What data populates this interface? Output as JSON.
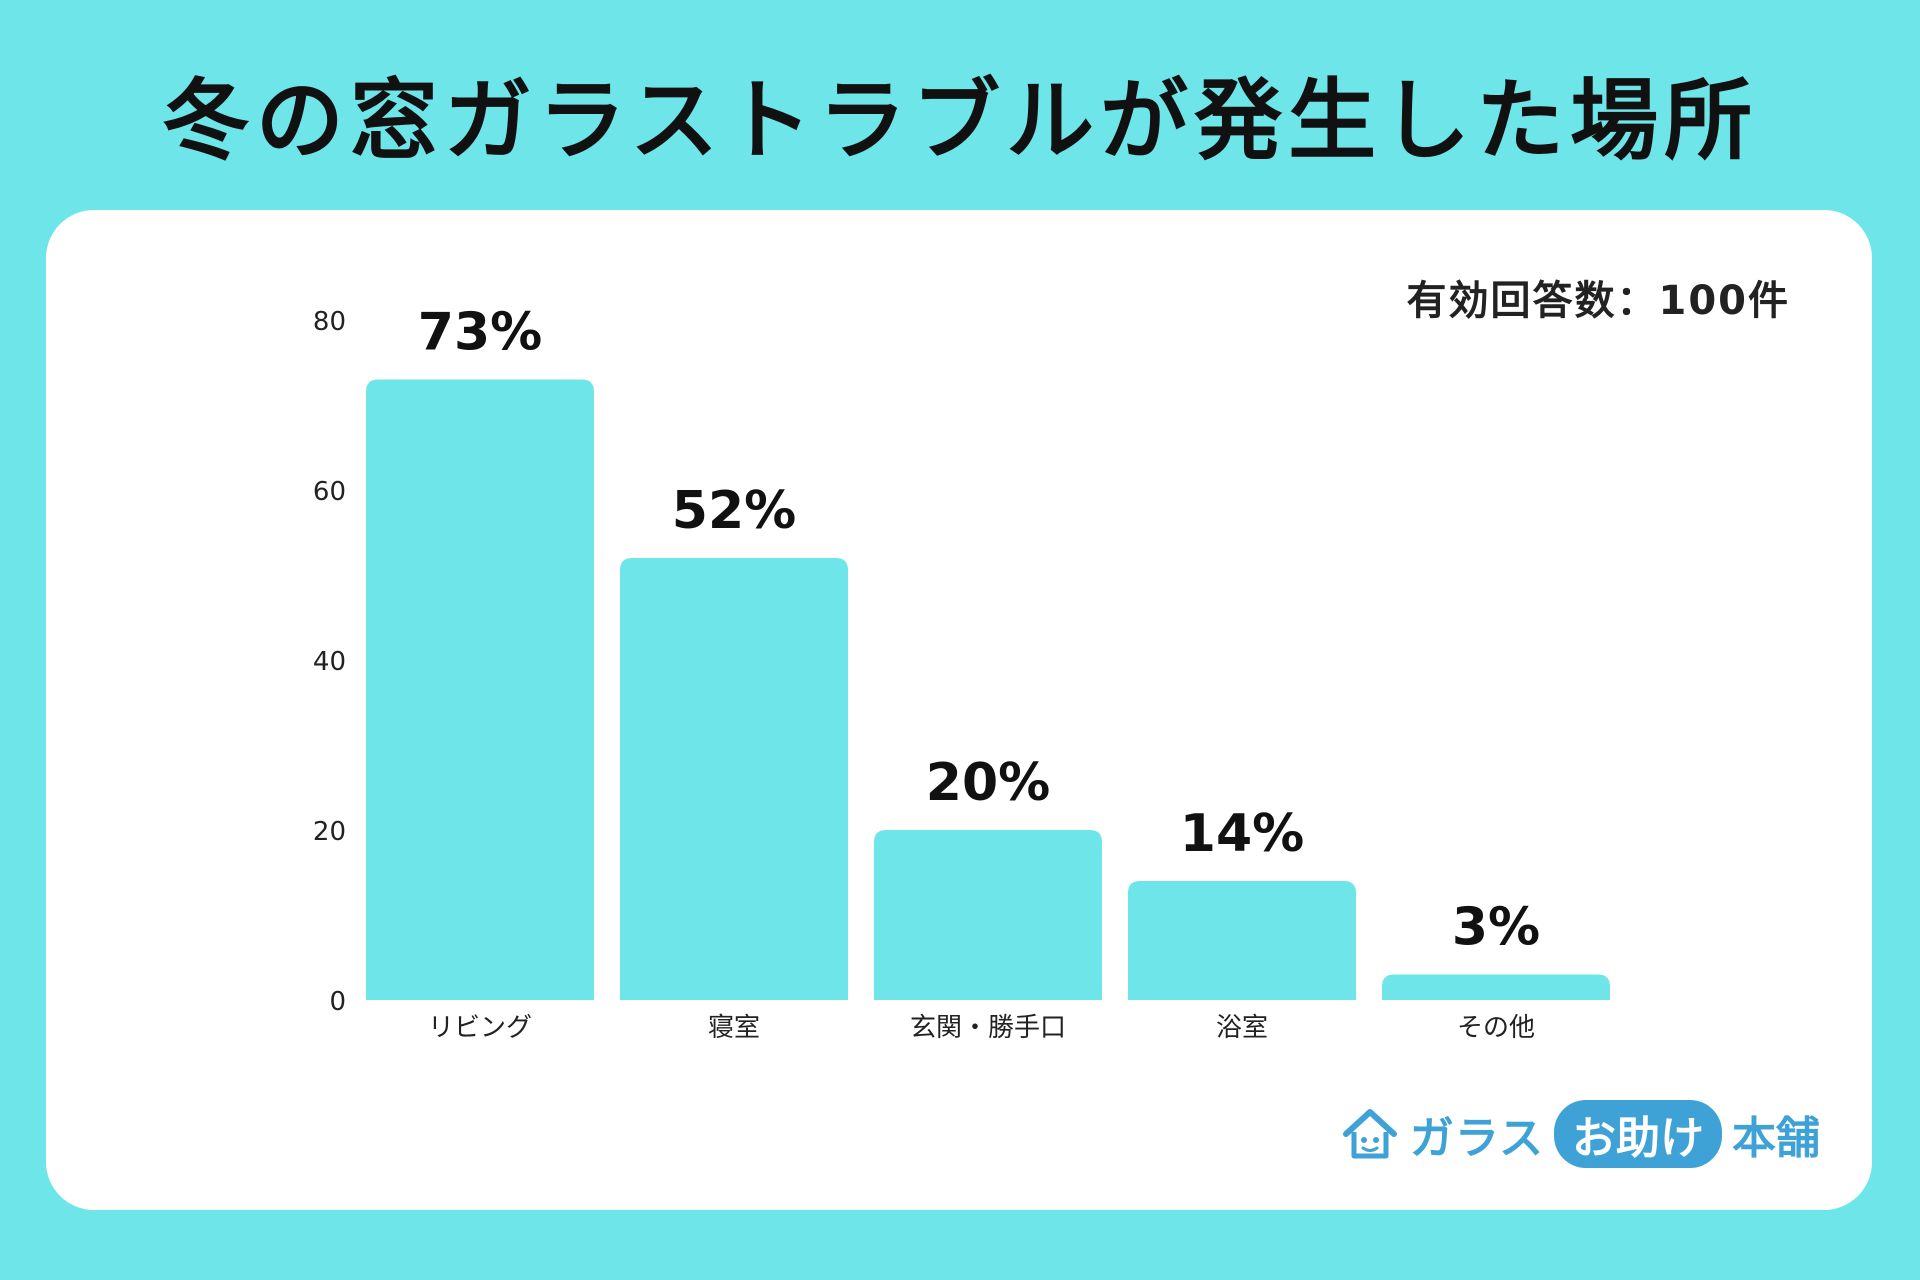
{
  "colors": {
    "background": "#6ee5e9",
    "bar": "#6ee5e9",
    "card": "#ffffff",
    "text": "#111111",
    "brand": "#3fa2d6"
  },
  "note": "有効回答数：100件",
  "brand": {
    "part1": "ガラス",
    "part2": "お助け",
    "part3": "本舗",
    "icon": "house-icon"
  },
  "chart_data": {
    "type": "bar",
    "title": "冬の窓ガラストラブルが発生した場所",
    "xlabel": "",
    "ylabel": "",
    "categories": [
      "リビング",
      "寝室",
      "玄関・勝手口",
      "浴室",
      "その他"
    ],
    "values": [
      73,
      52,
      20,
      14,
      3
    ],
    "value_labels": [
      "73%",
      "52%",
      "20%",
      "14%",
      "3%"
    ],
    "ylim": [
      0,
      80
    ],
    "yticks": [
      0,
      20,
      40,
      60,
      80
    ],
    "grid": false,
    "legend": "none"
  }
}
